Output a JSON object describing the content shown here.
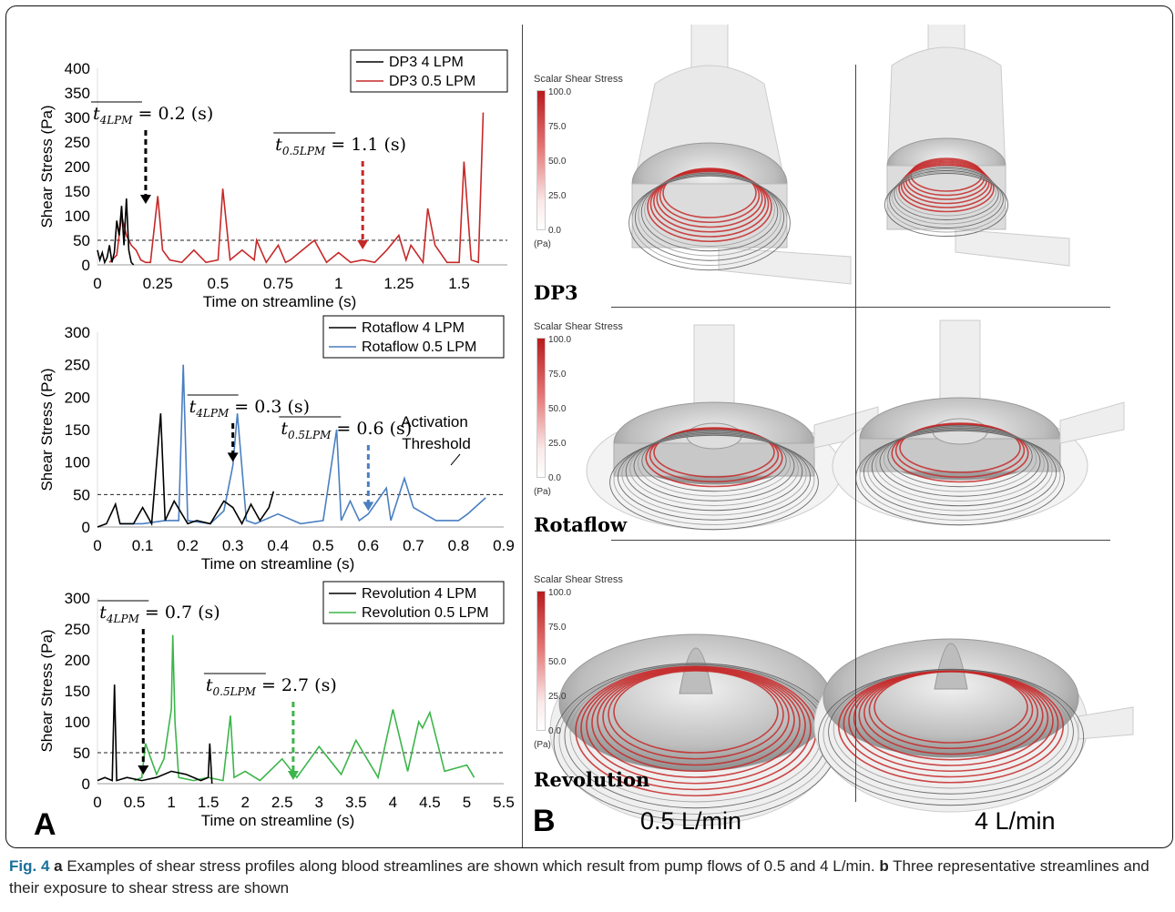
{
  "figure": {
    "panel_a_label": "A",
    "panel_b_label": "B",
    "caption": {
      "fig_label": "Fig. 4",
      "a_label": "a",
      "a_text": "Examples of shear stress profiles along blood streamlines are shown which result from pump flows of 0.5 and 4 L/min.",
      "b_label": "b",
      "b_text": "Three representative streamlines and their exposure to shear stress are shown"
    }
  },
  "chart_data": [
    {
      "type": "line",
      "ylabel": "Shear Stress (Pa)",
      "xlabel": "Time on streamline (s)",
      "ylim": [
        0,
        400
      ],
      "xlim": [
        0,
        1.7
      ],
      "yticks": [
        "0",
        "50",
        "100",
        "150",
        "200",
        "250",
        "300",
        "350",
        "400"
      ],
      "xticks": [
        "0",
        "0.25",
        "0.5",
        "0.75",
        "1",
        "1.25",
        "1.5"
      ],
      "xtick_vals": [
        0,
        0.25,
        0.5,
        0.75,
        1,
        1.25,
        1.5
      ],
      "threshold": 50,
      "legend": [
        "DP3 4 LPM",
        "DP3 0.5 LPM"
      ],
      "series": [
        {
          "name": "DP3 4 LPM",
          "color": "#000000",
          "x": [
            0,
            0.01,
            0.02,
            0.03,
            0.04,
            0.05,
            0.06,
            0.07,
            0.08,
            0.09,
            0.1,
            0.11,
            0.12,
            0.13,
            0.14,
            0.15
          ],
          "y": [
            30,
            10,
            25,
            5,
            15,
            40,
            5,
            25,
            90,
            60,
            120,
            40,
            135,
            30,
            5,
            0
          ]
        },
        {
          "name": "DP3 0.5 LPM",
          "color": "#c62828",
          "x": [
            0.05,
            0.08,
            0.1,
            0.12,
            0.14,
            0.16,
            0.18,
            0.2,
            0.22,
            0.25,
            0.27,
            0.3,
            0.35,
            0.4,
            0.45,
            0.5,
            0.52,
            0.55,
            0.6,
            0.65,
            0.66,
            0.7,
            0.75,
            0.78,
            0.8,
            0.85,
            0.9,
            0.95,
            1.0,
            1.05,
            1.1,
            1.15,
            1.2,
            1.25,
            1.28,
            1.3,
            1.35,
            1.37,
            1.4,
            1.45,
            1.5,
            1.52,
            1.55,
            1.58,
            1.6
          ],
          "y": [
            5,
            20,
            100,
            60,
            40,
            30,
            10,
            5,
            5,
            140,
            30,
            10,
            5,
            30,
            5,
            10,
            155,
            10,
            30,
            10,
            50,
            5,
            40,
            5,
            10,
            30,
            50,
            5,
            25,
            5,
            10,
            5,
            30,
            60,
            10,
            40,
            5,
            115,
            40,
            5,
            5,
            210,
            10,
            5,
            310
          ]
        }
      ],
      "annotations": [
        {
          "base": "t",
          "sub": "4LPM",
          "value": "= 0.2 (s)",
          "x": 0.2,
          "color": "#000000"
        },
        {
          "base": "t",
          "sub": "0.5LPM",
          "value": "= 1.1 (s)",
          "x": 1.1,
          "color": "#c62828"
        }
      ]
    },
    {
      "type": "line",
      "ylabel": "Shear Stress (Pa)",
      "xlabel": "Time on streamline (s)",
      "ylim": [
        0,
        300
      ],
      "xlim": [
        0,
        0.9
      ],
      "yticks": [
        "0",
        "50",
        "100",
        "150",
        "200",
        "250",
        "300"
      ],
      "xticks": [
        "0",
        "0.1",
        "0.2",
        "0.3",
        "0.4",
        "0.5",
        "0.6",
        "0.7",
        "0.8",
        "0.9"
      ],
      "xtick_vals": [
        0,
        0.1,
        0.2,
        0.3,
        0.4,
        0.5,
        0.6,
        0.7,
        0.8,
        0.9
      ],
      "threshold": 50,
      "legend": [
        "Rotaflow 4 LPM",
        "Rotaflow 0.5 LPM"
      ],
      "series": [
        {
          "name": "Rotaflow 4 LPM",
          "color": "#000000",
          "x": [
            0,
            0.02,
            0.04,
            0.05,
            0.08,
            0.1,
            0.12,
            0.14,
            0.15,
            0.17,
            0.2,
            0.22,
            0.25,
            0.28,
            0.3,
            0.32,
            0.34,
            0.36,
            0.38,
            0.39
          ],
          "y": [
            0,
            5,
            35,
            5,
            5,
            30,
            5,
            175,
            10,
            40,
            5,
            10,
            5,
            40,
            30,
            5,
            35,
            10,
            30,
            55
          ]
        },
        {
          "name": "Rotaflow 0.5 LPM",
          "color": "#4a7fc1",
          "x": [
            0.05,
            0.1,
            0.15,
            0.18,
            0.19,
            0.2,
            0.25,
            0.28,
            0.3,
            0.31,
            0.33,
            0.35,
            0.4,
            0.45,
            0.5,
            0.53,
            0.54,
            0.56,
            0.58,
            0.6,
            0.62,
            0.64,
            0.65,
            0.68,
            0.7,
            0.75,
            0.8,
            0.82,
            0.86
          ],
          "y": [
            5,
            5,
            10,
            10,
            250,
            10,
            5,
            25,
            95,
            175,
            10,
            5,
            20,
            5,
            10,
            150,
            10,
            40,
            10,
            20,
            40,
            60,
            10,
            75,
            30,
            10,
            10,
            20,
            45
          ]
        }
      ],
      "annotations": [
        {
          "base": "t",
          "sub": "4LPM",
          "value": "= 0.3 (s)",
          "x": 0.3,
          "color": "#000000"
        },
        {
          "base": "t",
          "sub": "0.5LPM",
          "value": "= 0.6 (s)",
          "x": 0.6,
          "color": "#4a7fc1"
        }
      ],
      "threshold_label": [
        "Activation",
        "Threshold"
      ]
    },
    {
      "type": "line",
      "ylabel": "Shear Stress (Pa)",
      "xlabel": "Time on streamline (s)",
      "ylim": [
        0,
        300
      ],
      "xlim": [
        0,
        5.5
      ],
      "yticks": [
        "0",
        "50",
        "100",
        "150",
        "200",
        "250",
        "300"
      ],
      "xticks": [
        "0",
        "0.5",
        "1",
        "1.5",
        "2",
        "2.5",
        "3",
        "3.5",
        "4",
        "4.5",
        "5",
        "5.5"
      ],
      "xtick_vals": [
        0,
        0.5,
        1,
        1.5,
        2,
        2.5,
        3,
        3.5,
        4,
        4.5,
        5,
        5.5
      ],
      "threshold": 50,
      "legend": [
        "Revolution 4 LPM",
        "Revolution 0.5 LPM"
      ],
      "series": [
        {
          "name": "Revolution 4 LPM",
          "color": "#000000",
          "x": [
            0,
            0.1,
            0.2,
            0.23,
            0.26,
            0.4,
            0.6,
            0.8,
            1.0,
            1.2,
            1.4,
            1.5,
            1.52,
            1.55
          ],
          "y": [
            5,
            10,
            5,
            160,
            5,
            10,
            5,
            10,
            20,
            15,
            5,
            10,
            65,
            0
          ]
        },
        {
          "name": "Revolution 0.5 LPM",
          "color": "#3cb54a",
          "x": [
            0.5,
            0.6,
            0.65,
            0.8,
            0.9,
            1.0,
            1.02,
            1.05,
            1.1,
            1.3,
            1.5,
            1.7,
            1.8,
            1.85,
            2.0,
            2.2,
            2.5,
            2.7,
            3.0,
            3.3,
            3.5,
            3.8,
            4.0,
            4.2,
            4.35,
            4.4,
            4.5,
            4.7,
            5.0,
            5.1
          ],
          "y": [
            5,
            10,
            65,
            15,
            40,
            120,
            240,
            100,
            10,
            5,
            10,
            5,
            110,
            10,
            20,
            5,
            40,
            10,
            60,
            15,
            70,
            10,
            120,
            20,
            100,
            90,
            115,
            20,
            30,
            10
          ]
        }
      ],
      "annotations": [
        {
          "base": "t",
          "sub": "4LPM",
          "value": "= 0.7 (s)",
          "x": 0.62,
          "color": "#000000"
        },
        {
          "base": "t",
          "sub": "0.5LPM",
          "value": "= 2.7 (s)",
          "x": 2.65,
          "color": "#3cb54a"
        }
      ]
    }
  ],
  "right_panel": {
    "colorbar_title": "Scalar Shear Stress",
    "colorbar_ticks": [
      "100.0",
      "75.0",
      "50.0",
      "25.0",
      "0.0"
    ],
    "colorbar_unit": "(Pa)",
    "pumps": [
      "DP3",
      "Rotaflow",
      "Revolution"
    ],
    "flows": [
      "0.5 L/min",
      "4 L/min"
    ]
  }
}
